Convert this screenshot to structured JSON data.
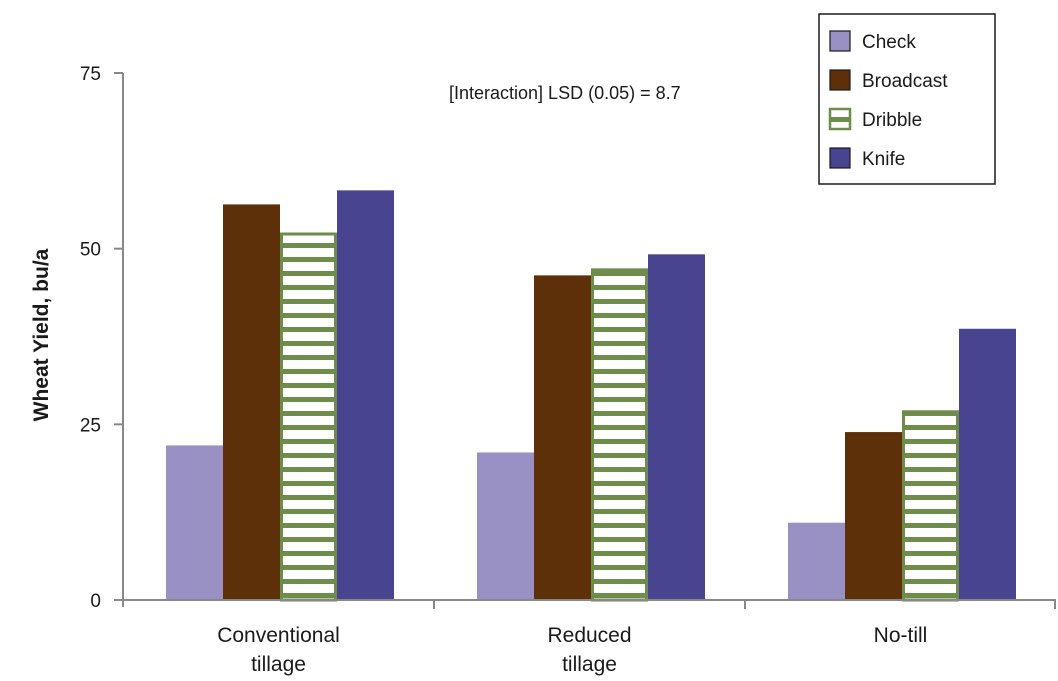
{
  "chart_data": {
    "type": "bar",
    "title": "",
    "xlabel": "",
    "ylabel": "Wheat Yield, bu/a",
    "ylim": [
      0,
      75
    ],
    "yticks": [
      0,
      25,
      50,
      75
    ],
    "categories": [
      {
        "lines": [
          "Conventional",
          "tillage"
        ]
      },
      {
        "lines": [
          "Reduced",
          "tillage"
        ]
      },
      {
        "lines": [
          "No-till"
        ]
      }
    ],
    "series": [
      {
        "name": "Check",
        "values": [
          22,
          21,
          11
        ],
        "color": "#9990c4",
        "pattern": "solid"
      },
      {
        "name": "Broadcast",
        "values": [
          56.3,
          46.2,
          23.9
        ],
        "color": "#5e300a",
        "pattern": "solid"
      },
      {
        "name": "Dribble",
        "values": [
          52.3,
          47.2,
          27
        ],
        "color": "#6e8c4a",
        "pattern": "horizontal-stripes"
      },
      {
        "name": "Knife",
        "values": [
          58.3,
          49.2,
          38.6
        ],
        "color": "#484490",
        "pattern": "solid"
      }
    ],
    "annotation": "[Interaction] LSD (0.05) = 8.7",
    "legend_position": "top-right",
    "grid": false
  }
}
